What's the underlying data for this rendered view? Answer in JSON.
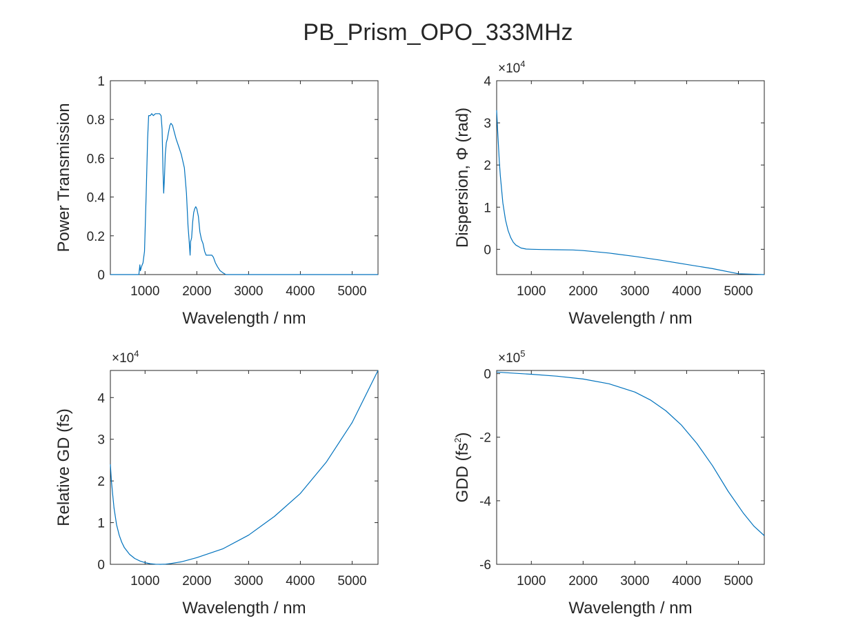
{
  "figure": {
    "title": "PB_Prism_OPO_333MHz",
    "line_color": "#0072BD",
    "axis_color": "#262626"
  },
  "chart_data": [
    {
      "type": "line",
      "id": "transmission",
      "xlabel": "Wavelength / nm",
      "ylabel": "Power Transmission",
      "xlim": [
        330,
        5500
      ],
      "ylim": [
        0,
        1
      ],
      "xticks": [
        1000,
        2000,
        3000,
        4000,
        5000
      ],
      "xtick_labels": [
        "1000",
        "2000",
        "3000",
        "4000",
        "5000"
      ],
      "yticks": [
        0,
        0.2,
        0.4,
        0.6,
        0.8,
        1
      ],
      "ytick_labels": [
        "0",
        "0.2",
        "0.4",
        "0.6",
        "0.8",
        "1"
      ],
      "exponent_label": "",
      "series": [
        {
          "x": [
            330,
            880,
            900,
            910,
            920,
            930,
            960,
            990,
            1020,
            1050,
            1070,
            1100,
            1130,
            1160,
            1200,
            1240,
            1280,
            1310,
            1330,
            1345,
            1360,
            1375,
            1390,
            1410,
            1430,
            1450,
            1480,
            1500,
            1530,
            1560,
            1600,
            1650,
            1700,
            1760,
            1800,
            1830,
            1850,
            1870,
            1880,
            1890,
            1900,
            1920,
            1940,
            1960,
            1980,
            2000,
            2030,
            2060,
            2090,
            2120,
            2150,
            2180,
            2210,
            2250,
            2290,
            2320,
            2360,
            2400,
            2450,
            2500,
            2560,
            2600,
            3000,
            4000,
            5000,
            5500
          ],
          "y": [
            0,
            0,
            0.05,
            0.02,
            0.03,
            0.04,
            0.06,
            0.12,
            0.4,
            0.7,
            0.82,
            0.82,
            0.83,
            0.82,
            0.83,
            0.83,
            0.83,
            0.82,
            0.75,
            0.55,
            0.42,
            0.5,
            0.62,
            0.68,
            0.7,
            0.73,
            0.77,
            0.78,
            0.77,
            0.74,
            0.7,
            0.66,
            0.62,
            0.55,
            0.42,
            0.25,
            0.18,
            0.1,
            0.17,
            0.18,
            0.19,
            0.27,
            0.32,
            0.34,
            0.35,
            0.34,
            0.3,
            0.22,
            0.18,
            0.16,
            0.12,
            0.1,
            0.1,
            0.1,
            0.1,
            0.09,
            0.06,
            0.04,
            0.02,
            0.01,
            0,
            0,
            0,
            0,
            0,
            0
          ]
        }
      ]
    },
    {
      "type": "line",
      "id": "dispersion",
      "xlabel": "Wavelength / nm",
      "ylabel": "Dispersion,  Φ  (rad)",
      "xlim": [
        330,
        5500
      ],
      "ylim": [
        -6000,
        40000
      ],
      "xticks": [
        1000,
        2000,
        3000,
        4000,
        5000
      ],
      "xtick_labels": [
        "1000",
        "2000",
        "3000",
        "4000",
        "5000"
      ],
      "yticks": [
        0,
        10000,
        20000,
        30000,
        40000
      ],
      "ytick_labels": [
        "0",
        "1",
        "2",
        "3",
        "4"
      ],
      "exponent_label": "×10",
      "exponent_power": "4",
      "series": [
        {
          "x": [
            330,
            350,
            380,
            400,
            450,
            500,
            550,
            600,
            650,
            700,
            800,
            900,
            1000,
            1200,
            1500,
            1800,
            2000,
            2500,
            3000,
            3500,
            4000,
            4500,
            5000,
            5500
          ],
          "y": [
            33000,
            28000,
            21000,
            17500,
            11000,
            7000,
            4500,
            2800,
            1700,
            1000,
            300,
            60,
            0,
            -50,
            -100,
            -150,
            -300,
            -900,
            -1700,
            -2600,
            -3600,
            -4600,
            -5800,
            -6000
          ]
        }
      ]
    },
    {
      "type": "line",
      "id": "group-delay",
      "xlabel": "Wavelength / nm",
      "ylabel": "Relative GD (fs)",
      "xlim": [
        330,
        5500
      ],
      "ylim": [
        0,
        46500
      ],
      "xticks": [
        1000,
        2000,
        3000,
        4000,
        5000
      ],
      "xtick_labels": [
        "1000",
        "2000",
        "3000",
        "4000",
        "5000"
      ],
      "yticks": [
        0,
        10000,
        20000,
        30000,
        40000
      ],
      "ytick_labels": [
        "0",
        "1",
        "2",
        "3",
        "4"
      ],
      "exponent_label": "×10",
      "exponent_power": "4",
      "series": [
        {
          "x": [
            330,
            350,
            380,
            400,
            450,
            500,
            550,
            600,
            700,
            800,
            900,
            1000,
            1100,
            1200,
            1300,
            1400,
            1500,
            1700,
            2000,
            2500,
            3000,
            3500,
            4000,
            4500,
            5000,
            5500
          ],
          "y": [
            24000,
            20000,
            16000,
            13500,
            9500,
            7000,
            5300,
            4000,
            2400,
            1400,
            800,
            400,
            150,
            30,
            0,
            50,
            200,
            600,
            1600,
            3700,
            7000,
            11500,
            17000,
            24500,
            34000,
            46500
          ]
        }
      ]
    },
    {
      "type": "line",
      "id": "gdd",
      "xlabel": "Wavelength / nm",
      "ylabel": "GDD  (fs",
      "ylabel_sup": "2",
      "ylabel_tail": ")",
      "xlim": [
        330,
        5500
      ],
      "ylim": [
        -600000,
        10000
      ],
      "xticks": [
        1000,
        2000,
        3000,
        4000,
        5000
      ],
      "xtick_labels": [
        "1000",
        "2000",
        "3000",
        "4000",
        "5000"
      ],
      "yticks": [
        -600000,
        -400000,
        -200000,
        0
      ],
      "ytick_labels": [
        "-6",
        "-4",
        "-2",
        "0"
      ],
      "exponent_label": "×10",
      "exponent_power": "5",
      "series": [
        {
          "x": [
            330,
            500,
            1000,
            1500,
            2000,
            2500,
            3000,
            3300,
            3600,
            3900,
            4200,
            4500,
            4800,
            5100,
            5300,
            5500
          ],
          "y": [
            5000,
            3000,
            -2000,
            -8000,
            -17000,
            -32000,
            -58000,
            -83000,
            -117000,
            -162000,
            -220000,
            -290000,
            -370000,
            -440000,
            -480000,
            -510000
          ]
        }
      ]
    }
  ]
}
